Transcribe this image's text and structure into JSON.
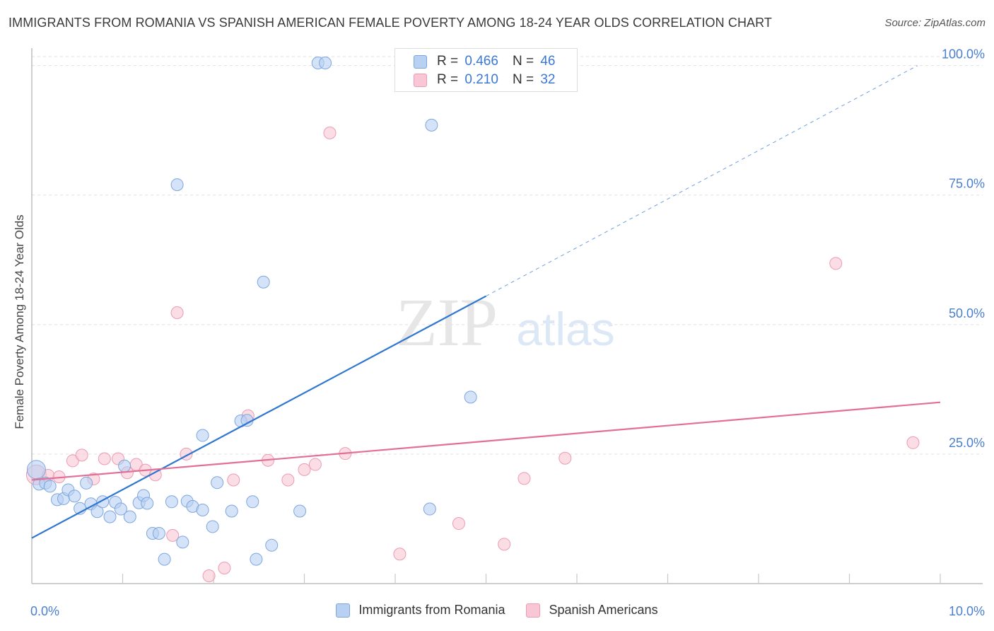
{
  "title": "IMMIGRANTS FROM ROMANIA VS SPANISH AMERICAN FEMALE POVERTY AMONG 18-24 YEAR OLDS CORRELATION CHART",
  "source": "Source: ZipAtlas.com",
  "watermark": {
    "zip": "ZIP",
    "atlas": "atlas"
  },
  "legend": {
    "rows": [
      {
        "r_label": "R =",
        "r_value": "0.466",
        "n_label": "N =",
        "n_value": "46"
      },
      {
        "r_label": "R =",
        "r_value": "0.210",
        "n_label": "N =",
        "n_value": "32"
      }
    ]
  },
  "colors": {
    "romania_fill": "#b8d0f2",
    "romania_stroke": "#7ea6de",
    "romania_line": "#2e76d0",
    "spanish_fill": "#f8c6d4",
    "spanish_stroke": "#ec9bb3",
    "spanish_line": "#e26f98",
    "tick_text": "#4a7fcf",
    "grid": "#e0e0e0"
  },
  "chart_data": {
    "type": "scatter",
    "xlabel": "",
    "ylabel": "Female Poverty Among 18-24 Year Olds",
    "xlim": [
      0,
      10
    ],
    "ylim": [
      0,
      102
    ],
    "x_tick_labels": [
      {
        "value": 0,
        "label": "0.0%"
      },
      {
        "value": 10,
        "label": "10.0%"
      }
    ],
    "y_tick_labels": [
      {
        "value": 25,
        "label": "25.0%"
      },
      {
        "value": 50,
        "label": "50.0%"
      },
      {
        "value": 75,
        "label": "75.0%"
      },
      {
        "value": 100,
        "label": "100.0%"
      }
    ],
    "grid": "horizontal-dashed",
    "legend_position": "top-center",
    "series": [
      {
        "name": "Immigrants from Romania",
        "color": "#b8d0f2",
        "points": [
          [
            0.05,
            22.0
          ],
          [
            0.08,
            19.2
          ],
          [
            0.15,
            19.4
          ],
          [
            0.2,
            18.8
          ],
          [
            0.28,
            16.2
          ],
          [
            0.35,
            16.4
          ],
          [
            0.4,
            18.1
          ],
          [
            0.47,
            16.9
          ],
          [
            0.53,
            14.5
          ],
          [
            0.6,
            19.4
          ],
          [
            0.65,
            15.4
          ],
          [
            0.72,
            13.9
          ],
          [
            0.78,
            15.8
          ],
          [
            0.86,
            12.9
          ],
          [
            0.92,
            15.7
          ],
          [
            0.98,
            14.4
          ],
          [
            1.02,
            22.7
          ],
          [
            1.08,
            12.9
          ],
          [
            1.18,
            15.6
          ],
          [
            1.23,
            17.0
          ],
          [
            1.27,
            15.5
          ],
          [
            1.33,
            9.7
          ],
          [
            1.4,
            9.7
          ],
          [
            1.46,
            4.7
          ],
          [
            1.54,
            15.8
          ],
          [
            1.66,
            8.0
          ],
          [
            1.71,
            15.9
          ],
          [
            1.77,
            14.9
          ],
          [
            1.88,
            14.2
          ],
          [
            1.88,
            28.6
          ],
          [
            1.99,
            11.0
          ],
          [
            2.04,
            19.5
          ],
          [
            2.2,
            14.0
          ],
          [
            2.3,
            31.4
          ],
          [
            2.37,
            31.5
          ],
          [
            2.43,
            15.8
          ],
          [
            2.47,
            4.7
          ],
          [
            2.55,
            58.2
          ],
          [
            2.64,
            7.4
          ],
          [
            2.95,
            14.0
          ],
          [
            3.15,
            100.5
          ],
          [
            3.23,
            100.5
          ],
          [
            4.38,
            14.4
          ],
          [
            4.4,
            88.5
          ],
          [
            4.83,
            36.0
          ],
          [
            1.6,
            77.0
          ]
        ]
      },
      {
        "name": "Spanish Americans",
        "color": "#f8c6d4",
        "points": [
          [
            0.05,
            21.0
          ],
          [
            0.18,
            20.9
          ],
          [
            0.3,
            20.6
          ],
          [
            0.45,
            23.7
          ],
          [
            0.55,
            24.8
          ],
          [
            0.68,
            20.2
          ],
          [
            0.8,
            24.1
          ],
          [
            0.95,
            24.1
          ],
          [
            1.05,
            21.4
          ],
          [
            1.15,
            23.0
          ],
          [
            1.25,
            21.9
          ],
          [
            1.36,
            21.0
          ],
          [
            1.55,
            9.3
          ],
          [
            1.6,
            52.3
          ],
          [
            1.7,
            25.0
          ],
          [
            1.95,
            1.5
          ],
          [
            2.12,
            3.0
          ],
          [
            2.22,
            20.0
          ],
          [
            2.38,
            32.4
          ],
          [
            2.6,
            23.8
          ],
          [
            2.82,
            20.0
          ],
          [
            3.0,
            22.0
          ],
          [
            3.12,
            23.0
          ],
          [
            3.28,
            87.0
          ],
          [
            3.45,
            25.1
          ],
          [
            4.05,
            5.7
          ],
          [
            4.7,
            11.6
          ],
          [
            5.2,
            7.6
          ],
          [
            5.42,
            20.3
          ],
          [
            5.87,
            24.2
          ],
          [
            8.85,
            61.8
          ],
          [
            9.7,
            27.2
          ]
        ]
      }
    ],
    "trendlines": [
      {
        "series": "Immigrants from Romania",
        "from": [
          0.0,
          8.8
        ],
        "to": [
          5.0,
          55.5
        ],
        "dashed_to": [
          9.75,
          100.0
        ]
      },
      {
        "series": "Spanish Americans",
        "from": [
          0.0,
          20.0
        ],
        "to": [
          10.0,
          35.0
        ]
      }
    ]
  }
}
